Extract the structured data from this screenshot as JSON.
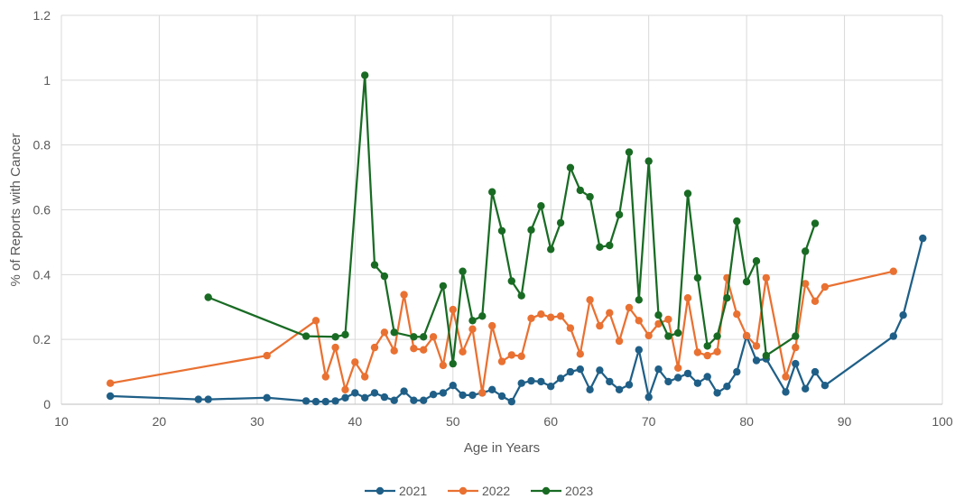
{
  "chart_data": {
    "type": "line",
    "title": "",
    "xlabel": "Age in Years",
    "ylabel": "% of Reports with Cancer",
    "xlim": [
      10,
      100
    ],
    "ylim": [
      0,
      1.2
    ],
    "x_ticks": [
      "10",
      "20",
      "30",
      "40",
      "50",
      "60",
      "70",
      "80",
      "90",
      "100"
    ],
    "y_ticks": [
      "0",
      "0.2",
      "0.4",
      "0.6",
      "0.8",
      "1",
      "1.2"
    ],
    "grid": true,
    "legend_position": "bottom",
    "series": [
      {
        "name": "2021",
        "color": "#1f5f87",
        "points": [
          [
            15,
            0.025
          ],
          [
            24,
            0.015
          ],
          [
            25,
            0.015
          ],
          [
            31,
            0.02
          ],
          [
            35,
            0.01
          ],
          [
            36,
            0.008
          ],
          [
            37,
            0.008
          ],
          [
            38,
            0.01
          ],
          [
            39,
            0.02
          ],
          [
            40,
            0.035
          ],
          [
            41,
            0.02
          ],
          [
            42,
            0.035
          ],
          [
            43,
            0.022
          ],
          [
            44,
            0.012
          ],
          [
            45,
            0.04
          ],
          [
            46,
            0.012
          ],
          [
            47,
            0.012
          ],
          [
            48,
            0.03
          ],
          [
            49,
            0.035
          ],
          [
            50,
            0.058
          ],
          [
            51,
            0.028
          ],
          [
            52,
            0.028
          ],
          [
            53,
            0.035
          ],
          [
            54,
            0.045
          ],
          [
            55,
            0.025
          ],
          [
            56,
            0.008
          ],
          [
            57,
            0.065
          ],
          [
            58,
            0.072
          ],
          [
            59,
            0.07
          ],
          [
            60,
            0.055
          ],
          [
            61,
            0.08
          ],
          [
            62,
            0.1
          ],
          [
            63,
            0.108
          ],
          [
            64,
            0.045
          ],
          [
            65,
            0.105
          ],
          [
            66,
            0.07
          ],
          [
            67,
            0.045
          ],
          [
            68,
            0.06
          ],
          [
            69,
            0.168
          ],
          [
            70,
            0.022
          ],
          [
            71,
            0.108
          ],
          [
            72,
            0.07
          ],
          [
            73,
            0.082
          ],
          [
            74,
            0.095
          ],
          [
            75,
            0.065
          ],
          [
            76,
            0.085
          ],
          [
            77,
            0.035
          ],
          [
            78,
            0.055
          ],
          [
            79,
            0.1
          ],
          [
            80,
            0.21
          ],
          [
            81,
            0.135
          ],
          [
            82,
            0.14
          ],
          [
            84,
            0.038
          ],
          [
            85,
            0.125
          ],
          [
            86,
            0.048
          ],
          [
            87,
            0.1
          ],
          [
            88,
            0.058
          ],
          [
            95,
            0.21
          ],
          [
            96,
            0.275
          ],
          [
            98,
            0.512
          ]
        ]
      },
      {
        "name": "2022",
        "color": "#e97132",
        "points": [
          [
            15,
            0.065
          ],
          [
            31,
            0.15
          ],
          [
            36,
            0.258
          ],
          [
            37,
            0.085
          ],
          [
            38,
            0.175
          ],
          [
            39,
            0.045
          ],
          [
            40,
            0.13
          ],
          [
            41,
            0.085
          ],
          [
            42,
            0.175
          ],
          [
            43,
            0.222
          ],
          [
            44,
            0.165
          ],
          [
            45,
            0.338
          ],
          [
            46,
            0.172
          ],
          [
            47,
            0.168
          ],
          [
            48,
            0.208
          ],
          [
            49,
            0.12
          ],
          [
            50,
            0.292
          ],
          [
            51,
            0.162
          ],
          [
            52,
            0.232
          ],
          [
            53,
            0.035
          ],
          [
            54,
            0.242
          ],
          [
            55,
            0.132
          ],
          [
            56,
            0.152
          ],
          [
            57,
            0.148
          ],
          [
            58,
            0.265
          ],
          [
            59,
            0.278
          ],
          [
            60,
            0.268
          ],
          [
            61,
            0.272
          ],
          [
            62,
            0.235
          ],
          [
            63,
            0.155
          ],
          [
            64,
            0.322
          ],
          [
            65,
            0.242
          ],
          [
            66,
            0.282
          ],
          [
            67,
            0.195
          ],
          [
            68,
            0.298
          ],
          [
            69,
            0.258
          ],
          [
            70,
            0.212
          ],
          [
            71,
            0.248
          ],
          [
            72,
            0.262
          ],
          [
            73,
            0.112
          ],
          [
            74,
            0.328
          ],
          [
            75,
            0.16
          ],
          [
            76,
            0.15
          ],
          [
            77,
            0.162
          ],
          [
            78,
            0.39
          ],
          [
            79,
            0.278
          ],
          [
            80,
            0.212
          ],
          [
            81,
            0.18
          ],
          [
            82,
            0.39
          ],
          [
            84,
            0.085
          ],
          [
            85,
            0.175
          ],
          [
            86,
            0.372
          ],
          [
            87,
            0.318
          ],
          [
            88,
            0.362
          ],
          [
            95,
            0.41
          ]
        ]
      },
      {
        "name": "2023",
        "color": "#196b24",
        "points": [
          [
            25,
            0.33
          ],
          [
            35,
            0.21
          ],
          [
            38,
            0.208
          ],
          [
            39,
            0.215
          ],
          [
            41,
            1.015
          ],
          [
            42,
            0.43
          ],
          [
            43,
            0.395
          ],
          [
            44,
            0.222
          ],
          [
            46,
            0.208
          ],
          [
            47,
            0.208
          ],
          [
            49,
            0.365
          ],
          [
            50,
            0.125
          ],
          [
            51,
            0.41
          ],
          [
            52,
            0.258
          ],
          [
            53,
            0.272
          ],
          [
            54,
            0.655
          ],
          [
            55,
            0.535
          ],
          [
            56,
            0.38
          ],
          [
            57,
            0.335
          ],
          [
            58,
            0.538
          ],
          [
            59,
            0.612
          ],
          [
            60,
            0.478
          ],
          [
            61,
            0.56
          ],
          [
            62,
            0.73
          ],
          [
            63,
            0.66
          ],
          [
            64,
            0.64
          ],
          [
            65,
            0.485
          ],
          [
            66,
            0.49
          ],
          [
            67,
            0.585
          ],
          [
            68,
            0.778
          ],
          [
            69,
            0.322
          ],
          [
            70,
            0.75
          ],
          [
            71,
            0.275
          ],
          [
            72,
            0.21
          ],
          [
            73,
            0.22
          ],
          [
            74,
            0.65
          ],
          [
            75,
            0.39
          ],
          [
            76,
            0.18
          ],
          [
            77,
            0.21
          ],
          [
            78,
            0.328
          ],
          [
            79,
            0.565
          ],
          [
            80,
            0.378
          ],
          [
            81,
            0.442
          ],
          [
            82,
            0.15
          ],
          [
            85,
            0.21
          ],
          [
            86,
            0.472
          ],
          [
            87,
            0.558
          ]
        ]
      }
    ]
  }
}
